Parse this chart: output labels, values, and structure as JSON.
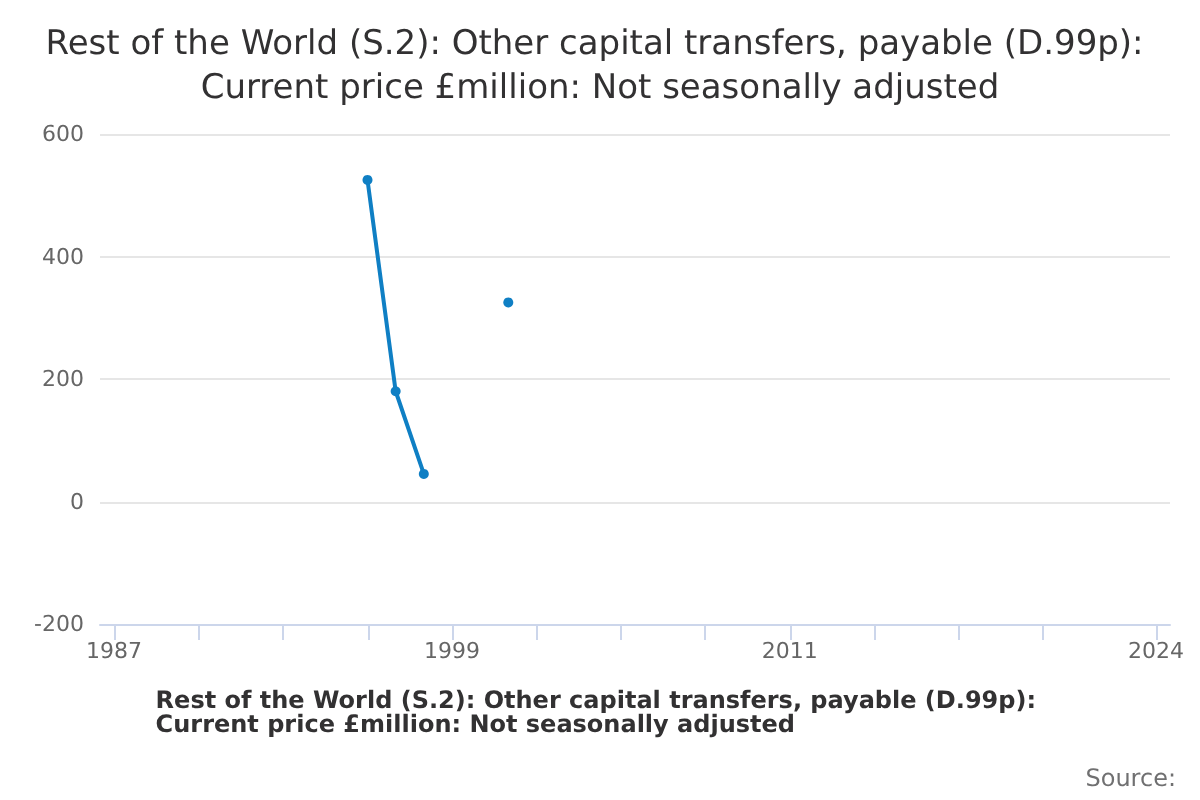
{
  "chart_data": {
    "type": "line",
    "title": "Rest of the World (S.2): Other capital transfers, payable (D.99p): Current price £million: Not seasonally adjusted",
    "x": [
      1996,
      1997,
      1998,
      1999,
      2000,
      2001
    ],
    "series": [
      {
        "color": "#0f7fc4",
        "values": [
          525,
          180,
          45,
          null,
          null,
          325
        ]
      }
    ],
    "xlim": [
      1986.5,
      2024.5
    ],
    "xticks": [
      1987,
      {
        "value": 1990,
        "label": null
      },
      {
        "value": 1993,
        "label": null
      },
      {
        "value": 1996,
        "label": null
      },
      1999,
      {
        "value": 2002,
        "label": null
      },
      {
        "value": 2005,
        "label": null
      },
      {
        "value": 2008,
        "label": null
      },
      2011,
      {
        "value": 2014,
        "label": null
      },
      {
        "value": 2017,
        "label": null
      },
      {
        "value": 2020,
        "label": null
      },
      2024
    ],
    "ylim": [
      -200,
      600
    ],
    "yticks": [
      -200,
      0,
      200,
      400,
      600
    ],
    "grid": "y",
    "marker": "circle",
    "line_style": "solid",
    "annotations": [
      "Rest of the World (S.2): Other capital transfers, payable (D.99p): Current price £million: Not seasonally adjusted",
      "Source:"
    ]
  }
}
